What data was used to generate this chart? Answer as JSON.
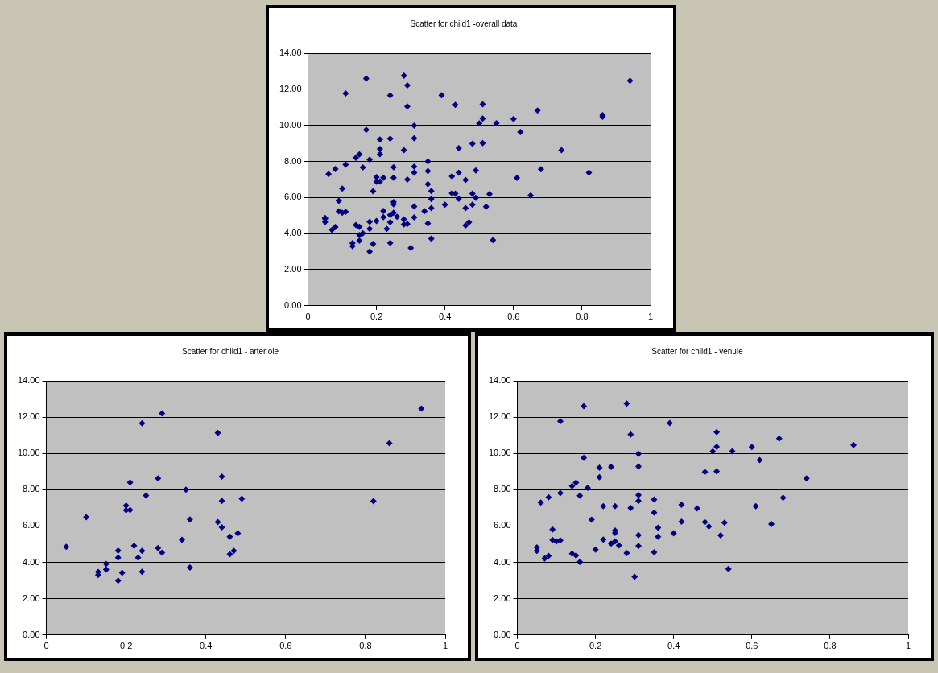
{
  "chart_data": [
    {
      "type": "scatter",
      "title": "Scatter for child1 -overall data",
      "x": [
        0.05,
        0.1,
        0.94,
        0.86,
        0.82,
        0.29,
        0.24,
        0.43,
        0.21,
        0.28,
        0.44,
        0.35,
        0.25,
        0.49,
        0.44,
        0.2,
        0.2,
        0.21,
        0.36,
        0.43,
        0.44,
        0.48,
        0.46,
        0.34,
        0.22,
        0.28,
        0.24,
        0.29,
        0.18,
        0.18,
        0.23,
        0.47,
        0.46,
        0.36,
        0.15,
        0.15,
        0.13,
        0.13,
        0.19,
        0.24,
        0.18,
        0.05,
        0.05,
        0.06,
        0.08,
        0.09,
        0.09,
        0.1,
        0.11,
        0.11,
        0.11,
        0.07,
        0.08,
        0.14,
        0.15,
        0.14,
        0.15,
        0.16,
        0.17,
        0.17,
        0.18,
        0.16,
        0.19,
        0.2,
        0.21,
        0.21,
        0.24,
        0.22,
        0.25,
        0.22,
        0.24,
        0.25,
        0.25,
        0.25,
        0.26,
        0.28,
        0.28,
        0.29,
        0.29,
        0.3,
        0.31,
        0.31,
        0.31,
        0.31,
        0.31,
        0.31,
        0.35,
        0.35,
        0.35,
        0.36,
        0.36,
        0.39,
        0.4,
        0.42,
        0.42,
        0.46,
        0.48,
        0.49,
        0.52,
        0.53,
        0.54,
        0.51,
        0.51,
        0.5,
        0.55,
        0.48,
        0.51,
        0.6,
        0.67,
        0.62,
        0.74,
        0.68,
        0.61,
        0.65,
        0.86
      ],
      "values": [
        4.86,
        6.49,
        12.47,
        10.56,
        7.37,
        12.21,
        11.66,
        11.13,
        8.4,
        8.62,
        8.73,
        8.0,
        7.68,
        7.5,
        7.38,
        7.13,
        6.87,
        6.88,
        6.36,
        6.22,
        5.93,
        5.6,
        5.41,
        5.25,
        4.91,
        4.79,
        4.63,
        4.53,
        4.65,
        4.26,
        4.26,
        4.63,
        4.45,
        3.72,
        3.92,
        3.6,
        3.47,
        3.3,
        3.43,
        3.48,
        3.0,
        4.82,
        4.64,
        7.3,
        7.58,
        5.81,
        5.23,
        5.16,
        5.21,
        7.82,
        11.77,
        4.21,
        4.36,
        8.2,
        8.39,
        4.48,
        4.38,
        4.02,
        12.6,
        9.75,
        8.1,
        7.67,
        6.35,
        4.7,
        9.21,
        8.69,
        9.26,
        7.1,
        7.1,
        5.26,
        5.03,
        5.16,
        5.62,
        5.75,
        4.93,
        12.75,
        4.51,
        11.04,
        7.0,
        3.2,
        7.38,
        7.71,
        9.28,
        9.98,
        5.5,
        4.9,
        4.56,
        6.74,
        7.46,
        5.91,
        5.41,
        11.67,
        5.6,
        7.17,
        6.24,
        6.97,
        6.22,
        5.98,
        5.49,
        6.19,
        3.64,
        11.17,
        10.37,
        10.11,
        10.12,
        8.98,
        9.01,
        10.35,
        10.82,
        9.63,
        8.62,
        7.56,
        7.09,
        6.11,
        10.47
      ],
      "color": "#000080",
      "marker": "diamond",
      "grid": "y",
      "xlim": [
        0,
        1
      ],
      "xticks": [
        0,
        0.2,
        0.4,
        0.6,
        0.8,
        1
      ],
      "ylim": [
        0,
        14
      ],
      "yticks": [
        {
          "value": 0,
          "label": "0.00"
        },
        {
          "value": 2,
          "label": "2.00"
        },
        {
          "value": 4,
          "label": "4.00"
        },
        {
          "value": 6,
          "label": "6.00"
        },
        {
          "value": 8,
          "label": "8.00"
        },
        {
          "value": 10,
          "label": "10.00"
        },
        {
          "value": 12,
          "label": "12.00"
        },
        {
          "value": 14,
          "label": "14.00"
        }
      ]
    },
    {
      "type": "scatter",
      "title": "Scatter for child1 - arteriole",
      "x": [
        0.05,
        0.1,
        0.94,
        0.86,
        0.82,
        0.29,
        0.24,
        0.43,
        0.21,
        0.28,
        0.44,
        0.35,
        0.25,
        0.49,
        0.44,
        0.2,
        0.2,
        0.21,
        0.36,
        0.43,
        0.44,
        0.48,
        0.46,
        0.34,
        0.22,
        0.28,
        0.24,
        0.29,
        0.18,
        0.18,
        0.23,
        0.47,
        0.46,
        0.36,
        0.15,
        0.15,
        0.13,
        0.13,
        0.19,
        0.24,
        0.18
      ],
      "values": [
        4.86,
        6.49,
        12.47,
        10.56,
        7.37,
        12.21,
        11.66,
        11.13,
        8.4,
        8.62,
        8.73,
        8.0,
        7.68,
        7.5,
        7.38,
        7.13,
        6.87,
        6.88,
        6.36,
        6.22,
        5.93,
        5.6,
        5.41,
        5.25,
        4.91,
        4.79,
        4.63,
        4.53,
        4.65,
        4.26,
        4.26,
        4.63,
        4.45,
        3.72,
        3.92,
        3.6,
        3.47,
        3.3,
        3.43,
        3.48,
        3.0
      ],
      "color": "#000080",
      "marker": "diamond",
      "grid": "y",
      "xlim": [
        0,
        1
      ],
      "xticks": [
        0,
        0.2,
        0.4,
        0.6,
        0.8,
        1
      ],
      "ylim": [
        0,
        14
      ],
      "yticks": [
        {
          "value": 0,
          "label": "0.00"
        },
        {
          "value": 2,
          "label": "2.00"
        },
        {
          "value": 4,
          "label": "4.00"
        },
        {
          "value": 6,
          "label": "6.00"
        },
        {
          "value": 8,
          "label": "8.00"
        },
        {
          "value": 10,
          "label": "10.00"
        },
        {
          "value": 12,
          "label": "12.00"
        },
        {
          "value": 14,
          "label": "14.00"
        }
      ]
    },
    {
      "type": "scatter",
      "title": "Scatter for child1 - venule",
      "x": [
        0.05,
        0.05,
        0.06,
        0.08,
        0.09,
        0.09,
        0.1,
        0.11,
        0.11,
        0.11,
        0.07,
        0.08,
        0.14,
        0.15,
        0.14,
        0.15,
        0.16,
        0.17,
        0.17,
        0.18,
        0.16,
        0.19,
        0.2,
        0.21,
        0.21,
        0.24,
        0.22,
        0.25,
        0.22,
        0.24,
        0.25,
        0.25,
        0.25,
        0.26,
        0.28,
        0.28,
        0.29,
        0.29,
        0.3,
        0.31,
        0.31,
        0.31,
        0.31,
        0.31,
        0.31,
        0.35,
        0.35,
        0.35,
        0.36,
        0.36,
        0.39,
        0.4,
        0.42,
        0.42,
        0.46,
        0.48,
        0.49,
        0.52,
        0.53,
        0.54,
        0.51,
        0.51,
        0.5,
        0.55,
        0.48,
        0.51,
        0.6,
        0.67,
        0.62,
        0.74,
        0.68,
        0.61,
        0.65,
        0.86
      ],
      "values": [
        4.82,
        4.64,
        7.3,
        7.58,
        5.81,
        5.23,
        5.16,
        5.21,
        7.82,
        11.77,
        4.21,
        4.36,
        8.2,
        8.39,
        4.48,
        4.38,
        4.02,
        12.6,
        9.75,
        8.1,
        7.67,
        6.35,
        4.7,
        9.21,
        8.69,
        9.26,
        7.1,
        7.1,
        5.26,
        5.03,
        5.16,
        5.62,
        5.75,
        4.93,
        12.75,
        4.51,
        11.04,
        7.0,
        3.2,
        7.38,
        7.71,
        9.28,
        9.98,
        5.5,
        4.9,
        4.56,
        6.74,
        7.46,
        5.91,
        5.41,
        11.67,
        5.6,
        7.17,
        6.24,
        6.97,
        6.22,
        5.98,
        5.49,
        6.19,
        3.64,
        11.17,
        10.37,
        10.11,
        10.12,
        8.98,
        9.01,
        10.35,
        10.82,
        9.63,
        8.62,
        7.56,
        7.09,
        6.11,
        10.47
      ],
      "color": "#000080",
      "marker": "diamond",
      "grid": "y",
      "xlim": [
        0,
        1
      ],
      "xticks": [
        0,
        0.2,
        0.4,
        0.6,
        0.8,
        1
      ],
      "ylim": [
        0,
        14
      ],
      "yticks": [
        {
          "value": 0,
          "label": "0.00"
        },
        {
          "value": 2,
          "label": "2.00"
        },
        {
          "value": 4,
          "label": "4.00"
        },
        {
          "value": 6,
          "label": "6.00"
        },
        {
          "value": 8,
          "label": "8.00"
        },
        {
          "value": 10,
          "label": "10.00"
        },
        {
          "value": 12,
          "label": "12.00"
        },
        {
          "value": 14,
          "label": "14.00"
        }
      ]
    }
  ]
}
